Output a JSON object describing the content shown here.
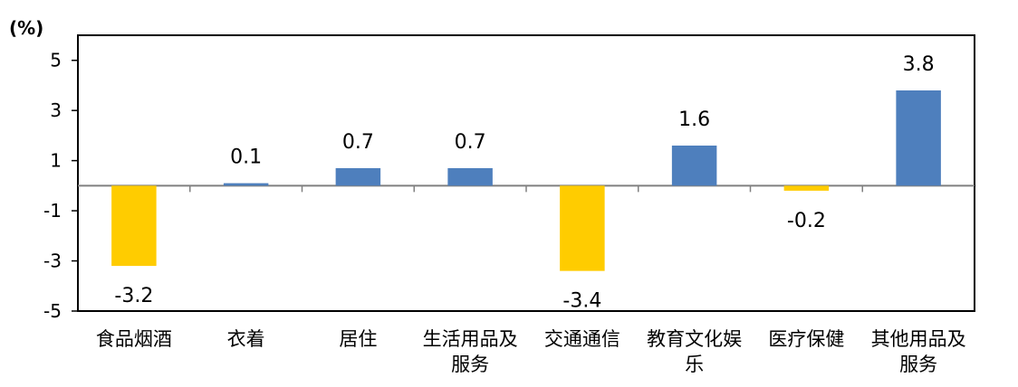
{
  "chart_data": {
    "type": "bar",
    "unit_label": "(%)",
    "categories": [
      [
        "食品烟酒"
      ],
      [
        "衣着"
      ],
      [
        "居住"
      ],
      [
        "生活用品及",
        "服务"
      ],
      [
        "交通通信"
      ],
      [
        "教育文化娱",
        "乐"
      ],
      [
        "医疗保健"
      ],
      [
        "其他用品及",
        "服务"
      ]
    ],
    "values": [
      -3.2,
      0.1,
      0.7,
      0.7,
      -3.4,
      1.6,
      -0.2,
      3.8
    ],
    "data_labels": [
      "-3.2",
      "0.1",
      "0.7",
      "0.7",
      "-3.4",
      "1.6",
      "-0.2",
      "3.8"
    ],
    "ylim": [
      -5,
      6
    ],
    "yticks": [
      5,
      3,
      1,
      -1,
      -3,
      -5
    ],
    "ytick_labels": [
      "5",
      "3",
      "1",
      "-1",
      "-3",
      "-5"
    ],
    "grid": false,
    "colors": {
      "positive": "#4e7fbd",
      "negative": "#ffcc00",
      "axis": "#000000",
      "zero_line": "#808080"
    }
  }
}
